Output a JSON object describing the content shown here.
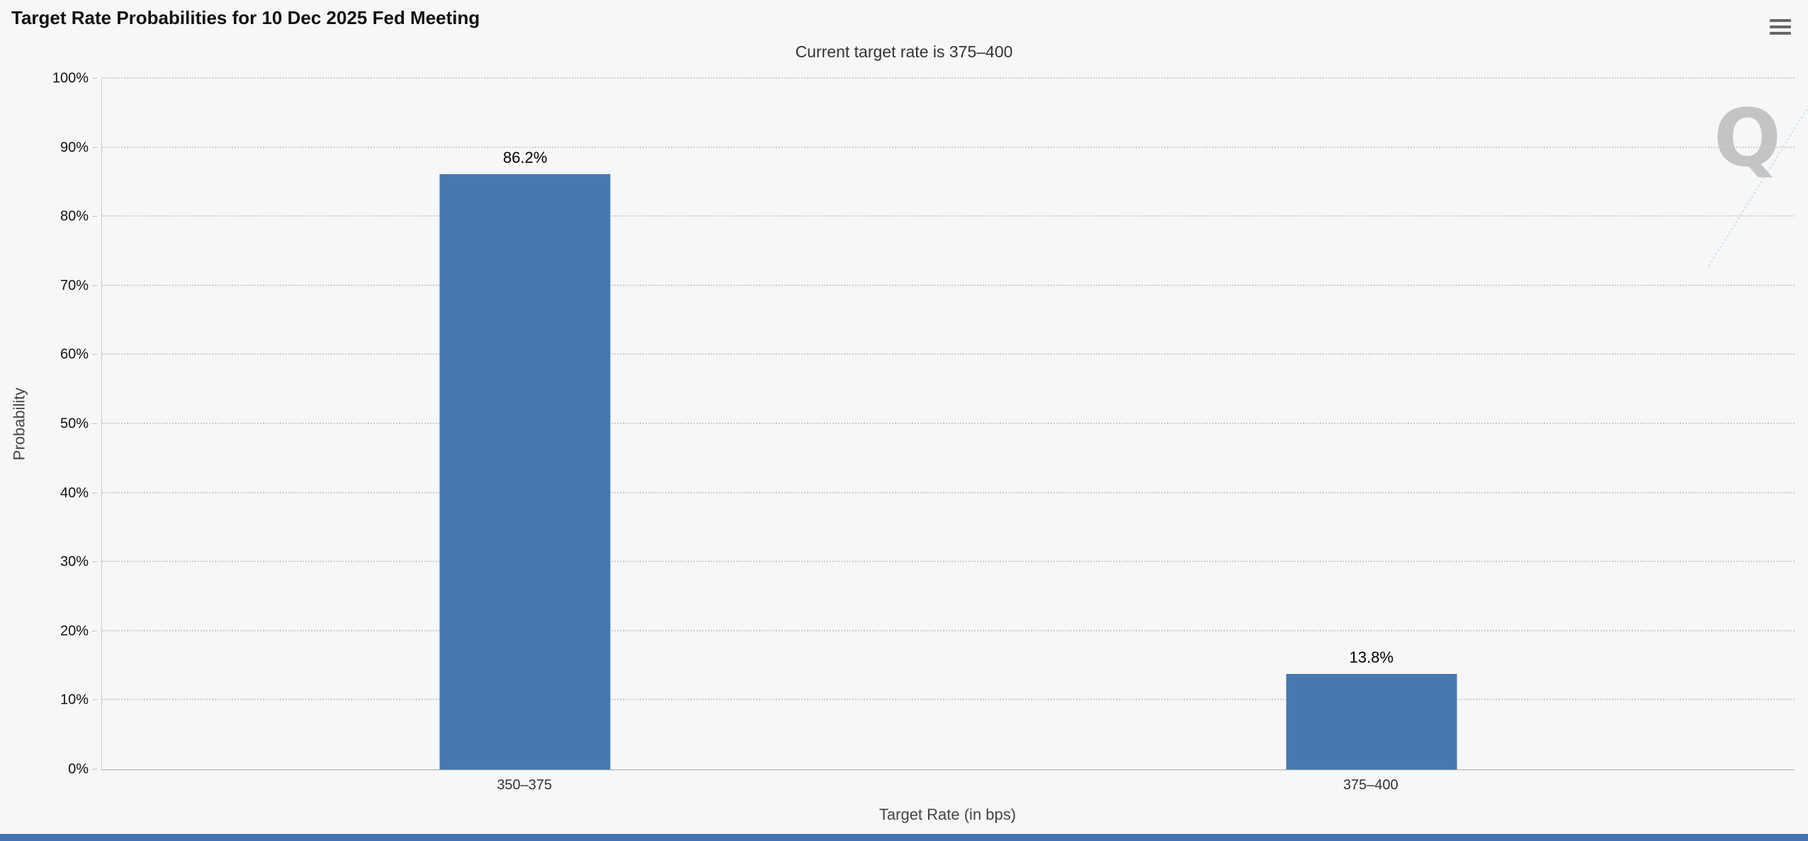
{
  "page": {
    "watermark": "Q"
  },
  "chart_data": {
    "type": "bar",
    "title": "Target Rate Probabilities for 10 Dec 2025 Fed Meeting",
    "subtitle": "Current target rate is 375–400",
    "categories": [
      "350–375",
      "375–400"
    ],
    "values": [
      86.2,
      13.8
    ],
    "value_labels": [
      "86.2%",
      "13.8%"
    ],
    "xlabel": "Target Rate (in bps)",
    "ylabel": "Probability",
    "ylim": [
      0,
      100
    ],
    "y_ticks": [
      "0%",
      "10%",
      "20%",
      "30%",
      "40%",
      "50%",
      "60%",
      "70%",
      "80%",
      "90%",
      "100%"
    ],
    "grid": "dotted-horizontal",
    "legend": "none",
    "bar_color": "#4679af"
  },
  "colors": {
    "background": "#f7f7f7",
    "grid": "#cdcdcd",
    "bottom_strip": "#4371b5"
  }
}
